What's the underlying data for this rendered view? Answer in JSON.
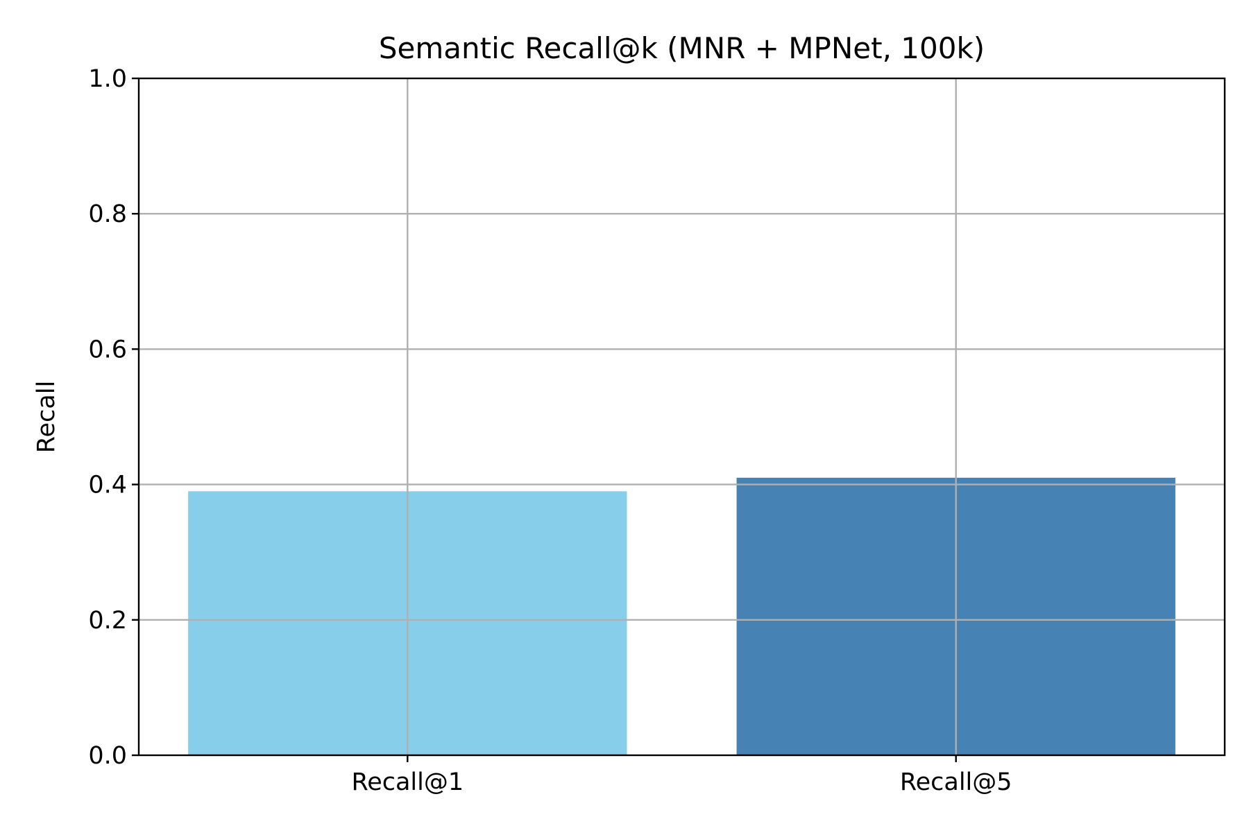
{
  "chart_data": {
    "type": "bar",
    "title": "Semantic Recall@k (MNR + MPNet, 100k)",
    "xlabel": "",
    "ylabel": "Recall",
    "categories": [
      "Recall@1",
      "Recall@5"
    ],
    "values": [
      0.39,
      0.41
    ],
    "bar_colors": [
      "#87ceeb",
      "#4682b4"
    ],
    "ylim": [
      0,
      1.0
    ],
    "yticks": [
      0.0,
      0.2,
      0.4,
      0.6,
      0.8,
      1.0
    ],
    "ytick_labels": [
      "0.0",
      "0.2",
      "0.4",
      "0.6",
      "0.8",
      "1.0"
    ],
    "grid": true,
    "grid_color": "#b0b0b0",
    "legend": false
  }
}
